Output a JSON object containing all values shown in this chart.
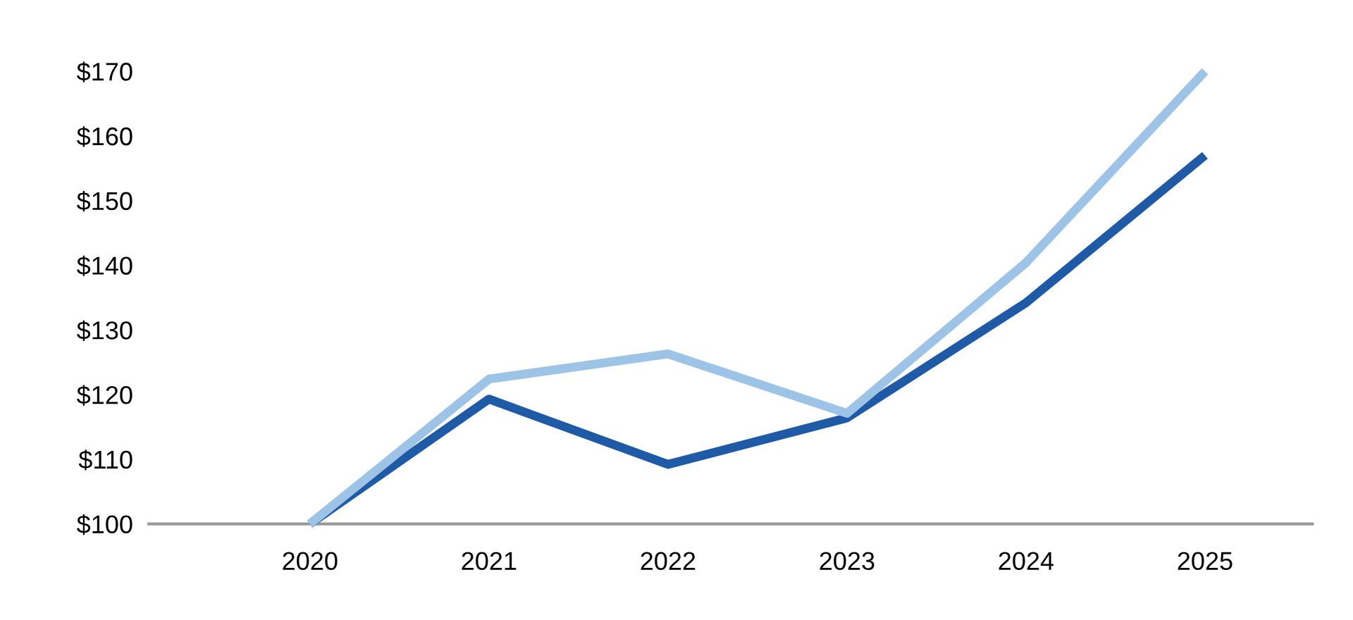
{
  "chart_data": {
    "type": "line",
    "categories": [
      "2020",
      "2021",
      "2022",
      "2023",
      "2024",
      "2025"
    ],
    "series": [
      {
        "color": "#1f5aa6",
        "values": [
          100,
          119.3,
          109.2,
          116.4,
          134.2,
          157
        ]
      },
      {
        "color": "#9dc3e6",
        "values": [
          100,
          122.4,
          126.3,
          117.1,
          140.4,
          170
        ]
      }
    ],
    "ylim": [
      100,
      170
    ],
    "yticks": [
      {
        "value": 100,
        "label": "$100"
      },
      {
        "value": 110,
        "label": "$110"
      },
      {
        "value": 120,
        "label": "$120"
      },
      {
        "value": 130,
        "label": "$130"
      },
      {
        "value": 140,
        "label": "$140"
      },
      {
        "value": 150,
        "label": "$150"
      },
      {
        "value": 160,
        "label": "$160"
      },
      {
        "value": 170,
        "label": "$170"
      }
    ],
    "grid": false,
    "marker": "none",
    "line_style": "solid"
  }
}
